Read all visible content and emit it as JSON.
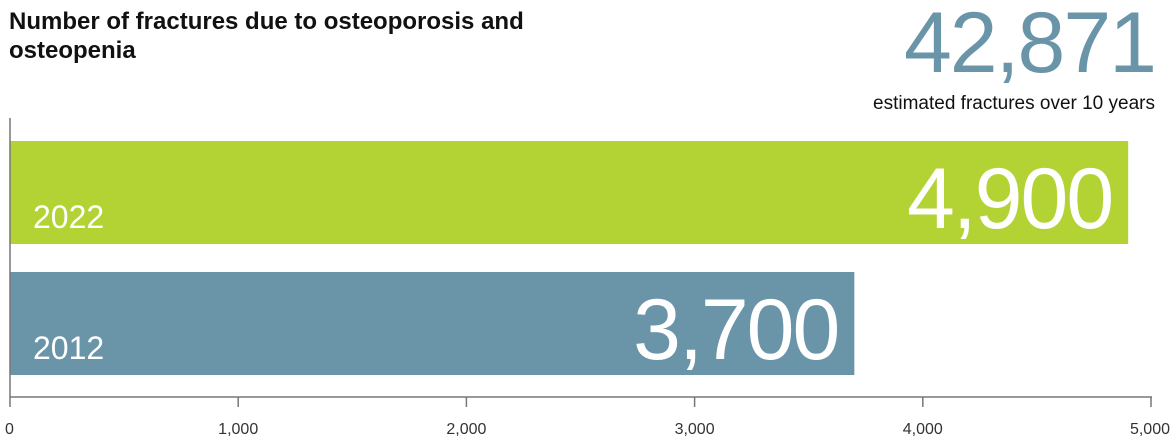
{
  "title": "Number of fractures due to osteoporosis and osteopenia",
  "headline": {
    "value": "42,871",
    "caption": "estimated fractures over 10 years",
    "color": "#6a95a9"
  },
  "chart_data": {
    "type": "bar",
    "orientation": "horizontal",
    "categories": [
      "2022",
      "2012"
    ],
    "values": [
      4900,
      3700
    ],
    "value_labels": [
      "4,900",
      "3,700"
    ],
    "bar_colors": [
      "#b3d334",
      "#6a95a9"
    ],
    "xlim": [
      0,
      5000
    ],
    "xticks": [
      0,
      1000,
      2000,
      3000,
      4000,
      5000
    ],
    "xtick_labels": [
      "0",
      "1,000",
      "2,000",
      "3,000",
      "4,000",
      "5,000"
    ],
    "grid": false
  }
}
